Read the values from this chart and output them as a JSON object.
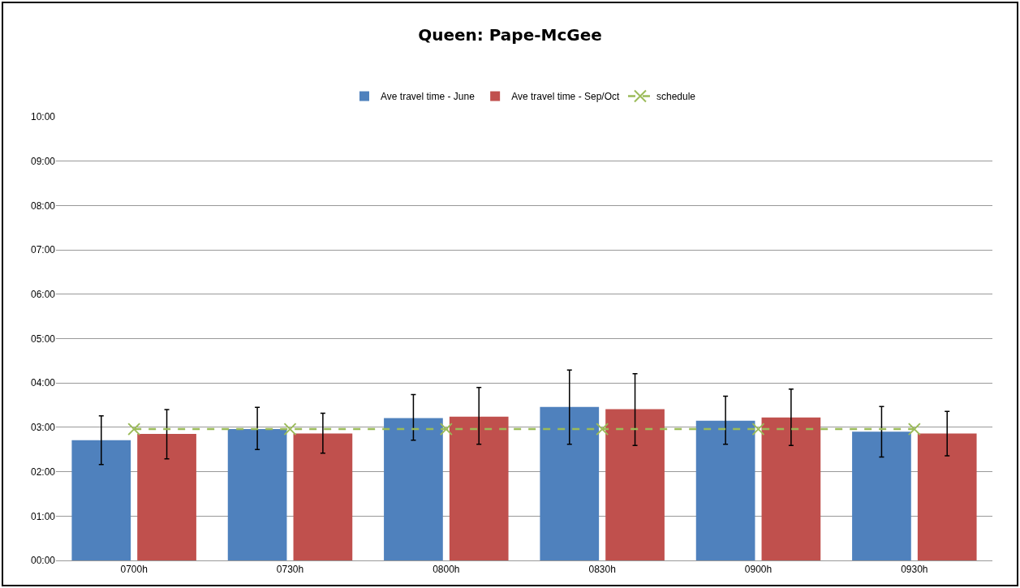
{
  "chart_data": {
    "type": "bar",
    "title": "Queen: Pape-McGee",
    "categories": [
      "0700h",
      "0730h",
      "0800h",
      "0830h",
      "0900h",
      "0930h"
    ],
    "series": [
      {
        "name": "Ave travel time - June",
        "color": "#4f81bd",
        "values": [
          2.71,
          2.96,
          3.21,
          3.46,
          3.15,
          2.9
        ],
        "errors": [
          [
            2.16,
            3.26
          ],
          [
            2.5,
            3.45
          ],
          [
            2.71,
            3.74
          ],
          [
            2.62,
            4.29
          ],
          [
            2.62,
            3.7
          ],
          [
            2.33,
            3.47
          ]
        ]
      },
      {
        "name": "Ave travel time - Sep/Oct",
        "color": "#c0504d",
        "values": [
          2.85,
          2.86,
          3.24,
          3.41,
          3.22,
          2.86
        ],
        "errors": [
          [
            2.29,
            3.4
          ],
          [
            2.42,
            3.32
          ],
          [
            2.62,
            3.9
          ],
          [
            2.59,
            4.21
          ],
          [
            2.59,
            3.86
          ],
          [
            2.36,
            3.36
          ]
        ]
      },
      {
        "name": "schedule",
        "type": "line",
        "color": "#9bbb59",
        "values": [
          2.96,
          2.96,
          2.96,
          2.96,
          2.96,
          2.96
        ],
        "marker": "cross",
        "line_style": "dashed"
      }
    ],
    "ylim": [
      0,
      10
    ],
    "yticks": [
      {
        "value": 0,
        "label": "00:00"
      },
      {
        "value": 1,
        "label": "01:00"
      },
      {
        "value": 2,
        "label": "02:00"
      },
      {
        "value": 3,
        "label": "03:00"
      },
      {
        "value": 4,
        "label": "04:00"
      },
      {
        "value": 5,
        "label": "05:00"
      },
      {
        "value": 6,
        "label": "06:00"
      },
      {
        "value": 7,
        "label": "07:00"
      },
      {
        "value": 8,
        "label": "08:00"
      },
      {
        "value": 9,
        "label": "09:00"
      },
      {
        "value": 10,
        "label": "10:00"
      }
    ],
    "grid": "y",
    "legend": "top"
  }
}
